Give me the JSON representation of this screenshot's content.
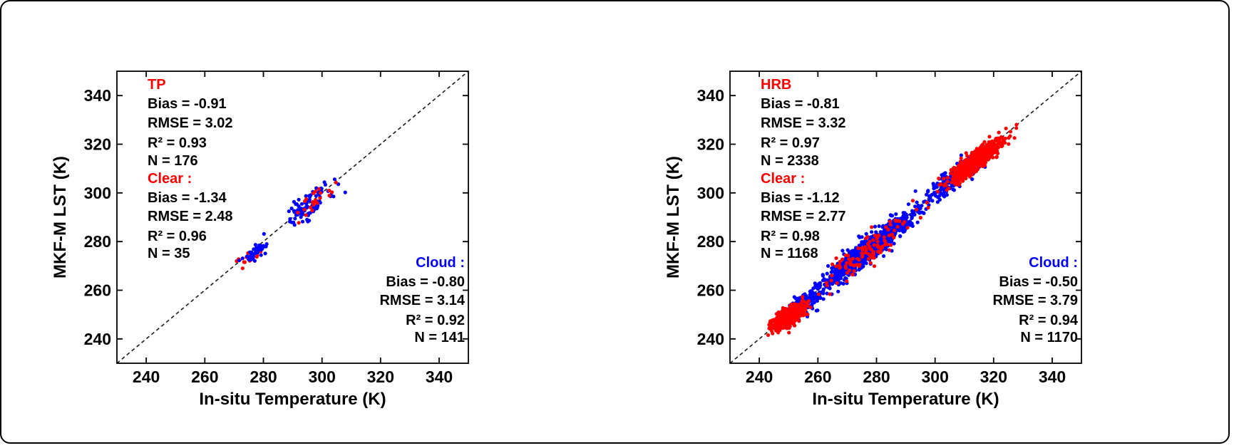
{
  "figure": {
    "background": "#ffffff",
    "border_color": "#000000",
    "clear_color": "#ff0000",
    "cloud_color": "#0000ff"
  },
  "chart_data": [
    {
      "type": "scatter",
      "region": "TP",
      "xlabel": "In-situ Temperature (K)",
      "ylabel": "MKF-M LST (K)",
      "xlim": [
        230,
        350
      ],
      "ylim": [
        230,
        350
      ],
      "xticks": [
        240,
        260,
        280,
        300,
        320,
        340
      ],
      "yticks": [
        240,
        260,
        280,
        300,
        320,
        340
      ],
      "grid": false,
      "identity_line": {
        "style": "dashed",
        "color": "#000000"
      },
      "stats": {
        "overall": {
          "label": "TP",
          "bias": -0.91,
          "rmse": 3.02,
          "r2": 0.93,
          "n": 176
        },
        "clear": {
          "bias": -1.34,
          "rmse": 2.48,
          "r2": 0.96,
          "n": 35
        },
        "cloud": {
          "bias": -0.8,
          "rmse": 3.14,
          "r2": 0.92,
          "n": 141
        }
      },
      "stats_blocks": [
        {
          "label": "TP",
          "label_color": "#ff0000",
          "align": "left",
          "lines": [
            "Bias = -0.91",
            "RMSE = 3.02",
            "R² = 0.93",
            "N = 176"
          ]
        },
        {
          "label": "Clear :",
          "label_color": "#ff0000",
          "align": "left",
          "lines": [
            "Bias = -1.34",
            "RMSE = 2.48",
            "R² = 0.96",
            "N = 35"
          ]
        },
        {
          "label": "Cloud :",
          "label_color": "#0000ff",
          "align": "right",
          "lines": [
            "Bias = -0.80",
            "RMSE = 3.14",
            "R² = 0.92",
            "N = 141"
          ]
        }
      ],
      "clusters": [
        {
          "series": "Clear",
          "color": "#ff0000",
          "n": 11,
          "cx": 276.3,
          "cy": 274.6,
          "along": 3.0,
          "perp": 1.2
        },
        {
          "series": "Clear",
          "color": "#ff0000",
          "n": 2,
          "cx": 271.2,
          "cy": 271.9,
          "along": 0.7,
          "perp": 0.4
        },
        {
          "series": "Cloud",
          "color": "#0000ff",
          "n": 48,
          "cx": 277.5,
          "cy": 275.6,
          "along": 2.7,
          "perp": 0.95
        },
        {
          "series": "Cloud",
          "color": "#0000ff",
          "n": 1,
          "cx": 280.3,
          "cy": 283.2,
          "along": 0.1,
          "perp": 0.1
        },
        {
          "series": "Cloud",
          "color": "#0000ff",
          "n": 92,
          "cx": 295.3,
          "cy": 294.6,
          "along": 5.2,
          "perp": 2.1
        },
        {
          "series": "Clear",
          "color": "#ff0000",
          "n": 22,
          "cx": 297.0,
          "cy": 296.3,
          "along": 5.0,
          "perp": 1.9
        }
      ]
    },
    {
      "type": "scatter",
      "region": "HRB",
      "xlabel": "In-situ Temperature (K)",
      "ylabel": "MKF-M LST (K)",
      "xlim": [
        230,
        350
      ],
      "ylim": [
        230,
        350
      ],
      "xticks": [
        240,
        260,
        280,
        300,
        320,
        340
      ],
      "yticks": [
        240,
        260,
        280,
        300,
        320,
        340
      ],
      "grid": false,
      "identity_line": {
        "style": "dashed",
        "color": "#000000"
      },
      "stats": {
        "overall": {
          "label": "HRB",
          "bias": -0.81,
          "rmse": 3.32,
          "r2": 0.97,
          "n": 2338
        },
        "clear": {
          "bias": -1.12,
          "rmse": 2.77,
          "r2": 0.98,
          "n": 1168
        },
        "cloud": {
          "bias": -0.5,
          "rmse": 3.79,
          "r2": 0.94,
          "n": 1170
        }
      },
      "stats_blocks": [
        {
          "label": "HRB",
          "label_color": "#ff0000",
          "align": "left",
          "lines": [
            "Bias = -0.81",
            "RMSE = 3.32",
            "R² = 0.97",
            "N = 2338"
          ]
        },
        {
          "label": "Clear :",
          "label_color": "#ff0000",
          "align": "left",
          "lines": [
            "Bias = -1.12",
            "RMSE = 2.77",
            "R² = 0.98",
            "N = 1168"
          ]
        },
        {
          "label": "Cloud :",
          "label_color": "#0000ff",
          "align": "right",
          "lines": [
            "Bias = -0.50",
            "RMSE = 3.79",
            "R² = 0.94",
            "N = 1170"
          ]
        }
      ],
      "clusters": [
        {
          "series": "Cloud",
          "color": "#0000ff",
          "n": 170,
          "cx": 255.0,
          "cy": 254.4,
          "along": 4.5,
          "perp": 1.6
        },
        {
          "series": "Cloud",
          "color": "#0000ff",
          "n": 820,
          "cx": 277.0,
          "cy": 276.6,
          "along": 12.0,
          "perp": 1.9
        },
        {
          "series": "Cloud",
          "color": "#0000ff",
          "n": 180,
          "cx": 306.0,
          "cy": 305.8,
          "along": 6.0,
          "perp": 1.9
        },
        {
          "series": "Clear",
          "color": "#ff0000",
          "n": 540,
          "cx": 250.0,
          "cy": 249.2,
          "along": 3.8,
          "perp": 1.4
        },
        {
          "series": "Clear",
          "color": "#ff0000",
          "n": 120,
          "cx": 278.0,
          "cy": 277.0,
          "along": 11.0,
          "perp": 2.2
        },
        {
          "series": "Clear",
          "color": "#ff0000",
          "n": 508,
          "cx": 314.0,
          "cy": 313.5,
          "along": 6.5,
          "perp": 1.5
        }
      ]
    }
  ]
}
